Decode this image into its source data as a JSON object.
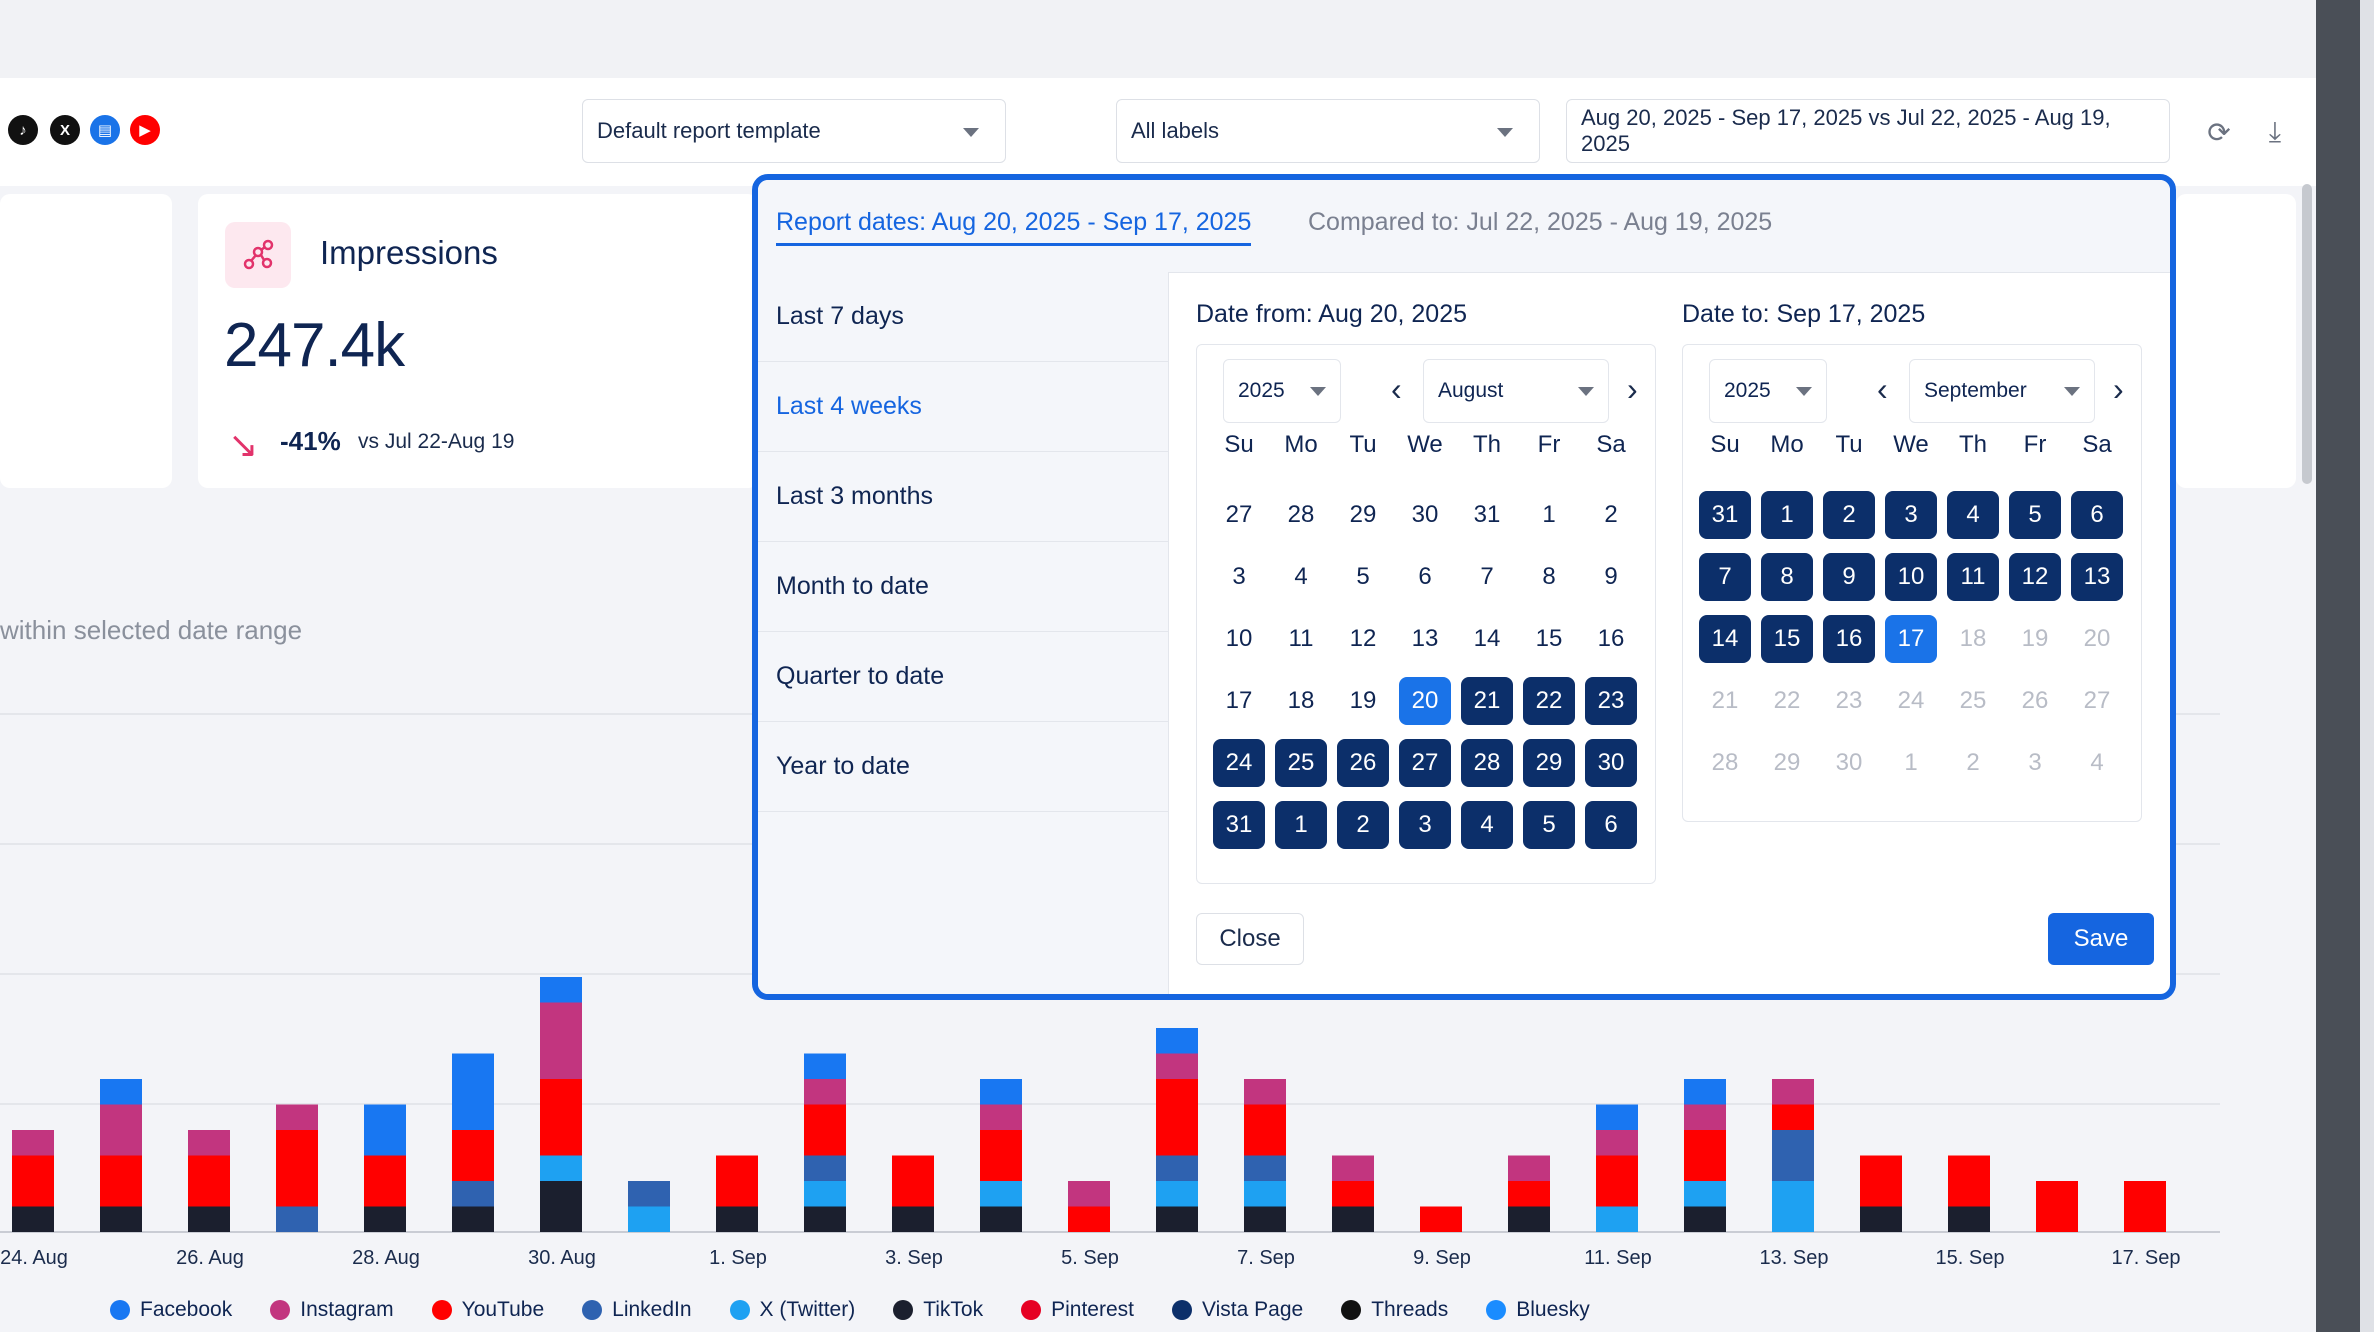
{
  "toolbar": {
    "template_select": "Default report template",
    "labels_select": "All labels",
    "date_range": "Aug 20, 2025 - Sep 17, 2025 vs Jul 22, 2025 - Aug 19, 2025",
    "networks": [
      "tiktok-icon",
      "x-icon",
      "vista-page-icon",
      "youtube-icon"
    ]
  },
  "metric": {
    "title": "Impressions",
    "value": "247.4k",
    "change": "-41%",
    "vs": "vs Jul 22-Aug 19",
    "change_color": "#e2336b"
  },
  "chart_subtitle": "within selected date range",
  "date_picker": {
    "report_tab": "Report dates: Aug 20, 2025 - Sep 17, 2025",
    "compare_tab": "Compared to: Jul 22, 2025 - Aug 19, 2025",
    "presets": [
      "Last 7 days",
      "Last 4 weeks",
      "Last 3 months",
      "Month to date",
      "Quarter to date",
      "Year to date"
    ],
    "active_preset": "Last 4 weeks",
    "weekdays": [
      "Su",
      "Mo",
      "Tu",
      "We",
      "Th",
      "Fr",
      "Sa"
    ],
    "from": {
      "label": "Date from: Aug 20, 2025",
      "year": "2025",
      "month": "August",
      "days": [
        27,
        28,
        29,
        30,
        31,
        1,
        2,
        3,
        4,
        5,
        6,
        7,
        8,
        9,
        10,
        11,
        12,
        13,
        14,
        15,
        16,
        17,
        18,
        19,
        20,
        21,
        22,
        23,
        24,
        25,
        26,
        27,
        28,
        29,
        30,
        31,
        1,
        2,
        3,
        4,
        5,
        6
      ],
      "states": [
        "n",
        "n",
        "n",
        "n",
        "n",
        "n",
        "n",
        "n",
        "n",
        "n",
        "n",
        "n",
        "n",
        "n",
        "n",
        "n",
        "n",
        "n",
        "n",
        "n",
        "n",
        "n",
        "n",
        "n",
        "e",
        "s",
        "s",
        "s",
        "s",
        "s",
        "s",
        "s",
        "s",
        "s",
        "s",
        "s",
        "s",
        "s",
        "s",
        "s",
        "s",
        "s"
      ]
    },
    "to": {
      "label": "Date to: Sep 17, 2025",
      "year": "2025",
      "month": "September",
      "days": [
        31,
        1,
        2,
        3,
        4,
        5,
        6,
        7,
        8,
        9,
        10,
        11,
        12,
        13,
        14,
        15,
        16,
        17,
        18,
        19,
        20,
        21,
        22,
        23,
        24,
        25,
        26,
        27,
        28,
        29,
        30,
        1,
        2,
        3,
        4
      ],
      "states": [
        "s",
        "s",
        "s",
        "s",
        "s",
        "s",
        "s",
        "s",
        "s",
        "s",
        "s",
        "s",
        "s",
        "s",
        "s",
        "s",
        "s",
        "e",
        "d",
        "d",
        "d",
        "d",
        "d",
        "d",
        "d",
        "d",
        "d",
        "d",
        "d",
        "d",
        "d",
        "d",
        "d",
        "d",
        "d"
      ]
    },
    "close_label": "Close",
    "save_label": "Save"
  },
  "chart_data": {
    "type": "bar",
    "stacked": true,
    "x_tick_labels": [
      "24. Aug",
      "26. Aug",
      "28. Aug",
      "30. Aug",
      "1. Sep",
      "3. Sep",
      "5. Sep",
      "7. Sep",
      "9. Sep",
      "11. Sep",
      "13. Sep",
      "15. Sep",
      "17. Sep"
    ],
    "categories": [
      "23 Aug",
      "24 Aug",
      "25 Aug",
      "26 Aug",
      "27 Aug",
      "28 Aug",
      "29 Aug",
      "30 Aug",
      "31 Aug",
      "1 Sep",
      "2 Sep",
      "3 Sep",
      "4 Sep",
      "5 Sep",
      "6 Sep",
      "7 Sep",
      "8 Sep",
      "9 Sep",
      "10 Sep",
      "11 Sep",
      "12 Sep",
      "13 Sep",
      "14 Sep",
      "15 Sep",
      "16 Sep",
      "17 Sep"
    ],
    "series": [
      {
        "name": "TikTok",
        "color": "#1b1f2e",
        "values": [
          1,
          1,
          1,
          0,
          1,
          1,
          2,
          0,
          1,
          1,
          1,
          1,
          0,
          1,
          1,
          1,
          0,
          1,
          0,
          1,
          0,
          1,
          1,
          0,
          0,
          0
        ]
      },
      {
        "name": "X (Twitter)",
        "color": "#1ea1f2",
        "values": [
          0,
          0,
          0,
          0,
          0,
          0,
          1,
          1,
          0,
          1,
          0,
          1,
          0,
          1,
          1,
          0,
          0,
          0,
          1,
          1,
          2,
          0,
          0,
          0,
          0,
          0
        ]
      },
      {
        "name": "LinkedIn",
        "color": "#2f62b0",
        "values": [
          0,
          0,
          0,
          1,
          0,
          1,
          0,
          1,
          0,
          1,
          0,
          0,
          0,
          1,
          1,
          0,
          0,
          0,
          0,
          0,
          2,
          0,
          0,
          0,
          0,
          0
        ]
      },
      {
        "name": "YouTube",
        "color": "#ff0000",
        "values": [
          2,
          2,
          2,
          3,
          2,
          2,
          3,
          0,
          2,
          2,
          2,
          2,
          1,
          3,
          2,
          1,
          1,
          1,
          2,
          2,
          1,
          2,
          2,
          2,
          2,
          0
        ]
      },
      {
        "name": "Instagram",
        "color": "#c2357f",
        "values": [
          1,
          2,
          1,
          1,
          0,
          0,
          3,
          0,
          0,
          1,
          0,
          1,
          1,
          1,
          1,
          1,
          0,
          1,
          1,
          1,
          1,
          0,
          0,
          0,
          0,
          0
        ]
      },
      {
        "name": "Facebook",
        "color": "#1877f2",
        "values": [
          0,
          1,
          0,
          0,
          2,
          3,
          1,
          0,
          0,
          1,
          0,
          1,
          0,
          1,
          0,
          0,
          0,
          0,
          1,
          1,
          0,
          0,
          0,
          0,
          0,
          0
        ]
      }
    ],
    "legend": [
      "Facebook",
      "Instagram",
      "YouTube",
      "LinkedIn",
      "X (Twitter)",
      "TikTok",
      "Pinterest",
      "Vista Page",
      "Threads",
      "Bluesky"
    ],
    "legend_colors": [
      "#1877f2",
      "#c2357f",
      "#ff0000",
      "#2f62b0",
      "#1ea1f2",
      "#1b1f2e",
      "#e60023",
      "#0c2f6a",
      "#111111",
      "#1a8cff"
    ],
    "legend_position": "bottom",
    "grid": true
  }
}
